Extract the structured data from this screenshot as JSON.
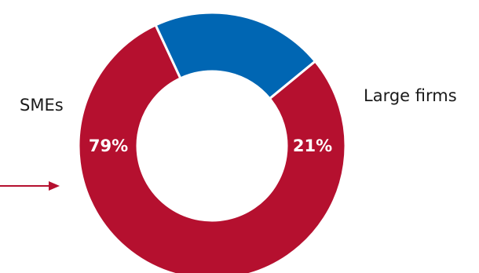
{
  "chart_data": {
    "type": "pie",
    "slices": [
      {
        "label": "SMEs",
        "value": 79,
        "display": "79%",
        "color": "#b5102f"
      },
      {
        "label": "Large firms",
        "value": 21,
        "display": "21%",
        "color": "#0066b3"
      }
    ],
    "hole": "donut",
    "legend": "none",
    "arrow_color": "#b5102f"
  }
}
